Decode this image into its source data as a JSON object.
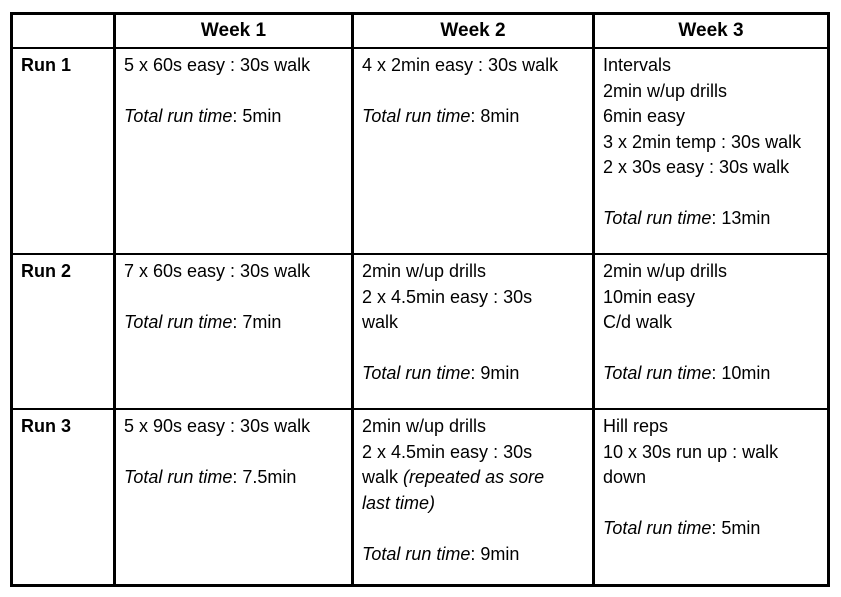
{
  "table": {
    "border_color": "#000000",
    "text_color": "#000000",
    "background_color": "#ffffff",
    "columns": [
      "",
      "Week 1",
      "Week 2",
      "Week 3"
    ],
    "rows": [
      {
        "label": "Run 1",
        "cells": [
          {
            "lines": [
              [
                {
                  "text": "5 x 60s easy : 30s walk"
                }
              ],
              [],
              [
                {
                  "text": "Total run time",
                  "italic": true
                },
                {
                  "text": ": 5min"
                }
              ]
            ]
          },
          {
            "lines": [
              [
                {
                  "text": "4 x 2min easy : 30s walk"
                }
              ],
              [],
              [
                {
                  "text": "Total run time",
                  "italic": true
                },
                {
                  "text": ": 8min"
                }
              ]
            ]
          },
          {
            "lines": [
              [
                {
                  "text": "Intervals"
                }
              ],
              [
                {
                  "text": "2min w/up drills"
                }
              ],
              [
                {
                  "text": "6min easy"
                }
              ],
              [
                {
                  "text": "3 x 2min temp : 30s walk"
                }
              ],
              [
                {
                  "text": "2 x 30s easy : 30s walk"
                }
              ],
              [],
              [
                {
                  "text": "Total run time",
                  "italic": true
                },
                {
                  "text": ": 13min"
                }
              ]
            ]
          }
        ]
      },
      {
        "label": "Run 2",
        "cells": [
          {
            "lines": [
              [
                {
                  "text": "7 x 60s easy : 30s walk"
                }
              ],
              [],
              [
                {
                  "text": "Total run time",
                  "italic": true
                },
                {
                  "text": ": 7min"
                }
              ]
            ]
          },
          {
            "lines": [
              [
                {
                  "text": "2min w/up drills"
                }
              ],
              [
                {
                  "text": "2 x 4.5min easy : 30s"
                }
              ],
              [
                {
                  "text": "walk"
                }
              ],
              [],
              [
                {
                  "text": "Total run time",
                  "italic": true
                },
                {
                  "text": ": 9min"
                }
              ]
            ]
          },
          {
            "lines": [
              [
                {
                  "text": "2min w/up drills"
                }
              ],
              [
                {
                  "text": "10min easy"
                }
              ],
              [
                {
                  "text": "C/d walk"
                }
              ],
              [],
              [
                {
                  "text": "Total run time",
                  "italic": true
                },
                {
                  "text": ": 10min"
                }
              ]
            ]
          }
        ]
      },
      {
        "label": "Run 3",
        "cells": [
          {
            "lines": [
              [
                {
                  "text": "5 x 90s easy : 30s walk"
                }
              ],
              [],
              [
                {
                  "text": "Total run time",
                  "italic": true
                },
                {
                  "text": ": 7.5min"
                }
              ]
            ]
          },
          {
            "lines": [
              [
                {
                  "text": "2min w/up drills"
                }
              ],
              [
                {
                  "text": "2 x 4.5min easy : 30s"
                }
              ],
              [
                {
                  "text": "walk "
                },
                {
                  "text": "(repeated as sore",
                  "italic": true
                }
              ],
              [
                {
                  "text": "last time)",
                  "italic": true
                }
              ],
              [],
              [
                {
                  "text": "Total run time",
                  "italic": true
                },
                {
                  "text": ": 9min"
                }
              ]
            ]
          },
          {
            "lines": [
              [
                {
                  "text": "Hill reps"
                }
              ],
              [
                {
                  "text": "10 x 30s run up : walk"
                }
              ],
              [
                {
                  "text": "down"
                }
              ],
              [],
              [
                {
                  "text": "Total run time",
                  "italic": true
                },
                {
                  "text": ": 5min"
                }
              ]
            ]
          }
        ]
      }
    ]
  }
}
